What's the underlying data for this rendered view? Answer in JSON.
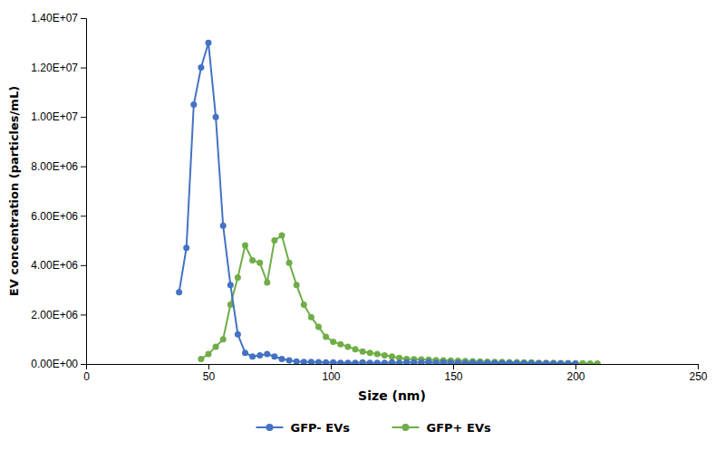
{
  "chart_data": {
    "type": "line",
    "xlabel": "Size (nm)",
    "ylabel": "EV concentration (particles/mL)",
    "xlim": [
      0,
      250
    ],
    "ylim": [
      0,
      14000000
    ],
    "xticks": [
      0,
      50,
      100,
      150,
      200,
      250
    ],
    "yticks": [
      {
        "value": 0,
        "label": "0.00E+00"
      },
      {
        "value": 2000000,
        "label": "2.00E+06"
      },
      {
        "value": 4000000,
        "label": "4.00E+06"
      },
      {
        "value": 6000000,
        "label": "6.00E+06"
      },
      {
        "value": 8000000,
        "label": "8.00E+06"
      },
      {
        "value": 10000000,
        "label": "1.00E+07"
      },
      {
        "value": 12000000,
        "label": "1.20E+07"
      },
      {
        "value": 14000000,
        "label": "1.40E+07"
      }
    ],
    "grid": false,
    "legend": "bottom",
    "series": [
      {
        "name": "GFP- EVs",
        "color": "#4472c4",
        "marker": "circle",
        "line_style": "solid",
        "x": [
          38,
          41,
          44,
          47,
          50,
          53,
          56,
          59,
          62,
          65,
          68,
          71,
          74,
          77,
          80,
          83,
          86,
          89,
          92,
          95,
          98,
          101,
          104,
          107,
          110,
          113,
          116,
          119,
          122,
          125,
          128,
          131,
          134,
          137,
          140,
          143,
          146,
          149,
          152,
          155,
          158,
          161,
          164,
          167,
          170,
          173,
          176,
          179,
          182,
          185,
          188,
          191,
          194,
          197,
          200
        ],
        "values": [
          2900000,
          4700000,
          10500000,
          12000000,
          13000000,
          10000000,
          5600000,
          3200000,
          1200000,
          450000,
          300000,
          350000,
          400000,
          300000,
          200000,
          150000,
          100000,
          80000,
          80000,
          70000,
          60000,
          60000,
          50000,
          50000,
          50000,
          60000,
          50000,
          50000,
          50000,
          60000,
          50000,
          70000,
          60000,
          60000,
          70000,
          50000,
          60000,
          50000,
          50000,
          40000,
          50000,
          40000,
          40000,
          40000,
          40000,
          40000,
          30000,
          30000,
          30000,
          30000,
          30000,
          20000,
          20000,
          20000,
          20000
        ]
      },
      {
        "name": "GFP+ EVs",
        "color": "#70ad47",
        "marker": "circle",
        "line_style": "solid",
        "x": [
          47,
          50,
          53,
          56,
          59,
          62,
          65,
          68,
          71,
          74,
          77,
          80,
          83,
          86,
          89,
          92,
          95,
          98,
          101,
          104,
          107,
          110,
          113,
          116,
          119,
          122,
          125,
          128,
          131,
          134,
          137,
          140,
          143,
          146,
          149,
          152,
          155,
          158,
          161,
          164,
          167,
          170,
          173,
          176,
          179,
          182,
          185,
          188,
          191,
          194,
          197,
          200,
          203,
          206,
          209
        ],
        "values": [
          200000,
          400000,
          700000,
          1000000,
          2400000,
          3500000,
          4800000,
          4200000,
          4100000,
          3300000,
          5000000,
          5200000,
          4100000,
          3200000,
          2400000,
          1900000,
          1500000,
          1100000,
          900000,
          800000,
          700000,
          600000,
          500000,
          450000,
          400000,
          350000,
          300000,
          250000,
          200000,
          190000,
          180000,
          170000,
          160000,
          150000,
          140000,
          130000,
          120000,
          110000,
          100000,
          90000,
          80000,
          80000,
          70000,
          70000,
          60000,
          60000,
          50000,
          50000,
          50000,
          40000,
          40000,
          30000,
          30000,
          20000,
          20000
        ]
      }
    ]
  }
}
